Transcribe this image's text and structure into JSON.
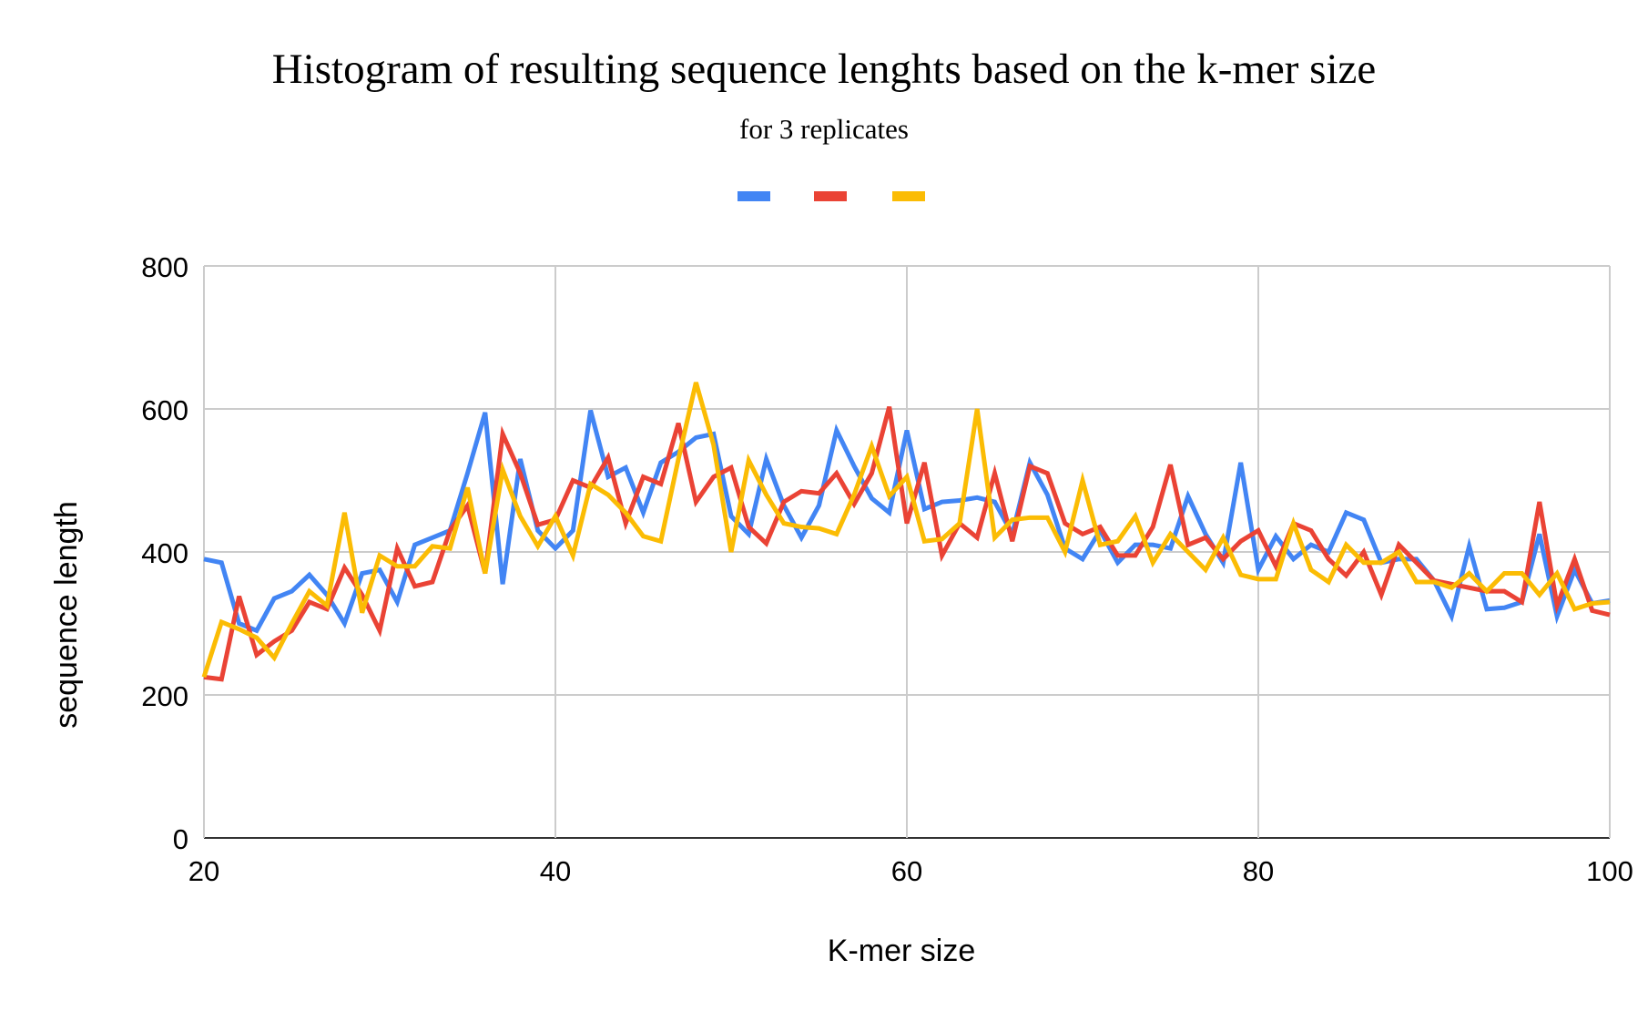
{
  "chart_data": {
    "type": "line",
    "title": "Histogram of resulting sequence lenghts based on the k-mer size",
    "subtitle": "for 3 replicates",
    "xlabel": "K-mer size",
    "ylabel": "sequence length",
    "xlim": [
      20,
      100
    ],
    "ylim": [
      0,
      800
    ],
    "x_ticks": [
      20,
      40,
      60,
      80,
      100
    ],
    "y_ticks": [
      0,
      200,
      400,
      600,
      800
    ],
    "grid": true,
    "legend_position": "top",
    "x": [
      20,
      21,
      22,
      23,
      24,
      25,
      26,
      27,
      28,
      29,
      30,
      31,
      32,
      33,
      34,
      35,
      36,
      37,
      38,
      39,
      40,
      41,
      42,
      43,
      44,
      45,
      46,
      47,
      48,
      49,
      50,
      51,
      52,
      53,
      54,
      55,
      56,
      57,
      58,
      59,
      60,
      61,
      62,
      63,
      64,
      65,
      66,
      67,
      68,
      69,
      70,
      71,
      72,
      73,
      74,
      75,
      76,
      77,
      78,
      79,
      80,
      81,
      82,
      83,
      84,
      85,
      86,
      87,
      88,
      89,
      90,
      91,
      92,
      93,
      94,
      95,
      96,
      97,
      98,
      99,
      100
    ],
    "series": [
      {
        "name": "",
        "color": "#4285f4",
        "values": [
          390,
          385,
          300,
          290,
          335,
          345,
          368,
          340,
          300,
          370,
          375,
          330,
          410,
          420,
          430,
          510,
          595,
          355,
          530,
          430,
          405,
          430,
          598,
          505,
          518,
          455,
          525,
          540,
          560,
          565,
          450,
          425,
          530,
          465,
          420,
          465,
          570,
          520,
          475,
          455,
          570,
          460,
          470,
          472,
          476,
          470,
          425,
          525,
          480,
          405,
          390,
          430,
          385,
          410,
          410,
          405,
          478,
          425,
          385,
          525,
          375,
          422,
          390,
          410,
          400,
          455,
          445,
          385,
          390,
          390,
          360,
          310,
          408,
          320,
          322,
          330,
          425,
          310,
          375,
          328,
          332
        ]
      },
      {
        "name": "",
        "color": "#ea4335",
        "values": [
          225,
          222,
          338,
          256,
          275,
          290,
          330,
          320,
          378,
          340,
          290,
          405,
          352,
          358,
          430,
          465,
          370,
          565,
          510,
          438,
          445,
          500,
          490,
          532,
          440,
          505,
          495,
          580,
          470,
          505,
          518,
          435,
          412,
          470,
          485,
          482,
          510,
          467,
          510,
          603,
          440,
          525,
          395,
          440,
          420,
          510,
          415,
          520,
          510,
          440,
          425,
          435,
          395,
          395,
          435,
          522,
          410,
          420,
          390,
          415,
          430,
          380,
          440,
          430,
          390,
          367,
          400,
          340,
          410,
          385,
          360,
          355,
          350,
          345,
          345,
          330,
          470,
          325,
          390,
          318,
          312
        ]
      },
      {
        "name": "",
        "color": "#fbbc04",
        "values": [
          225,
          302,
          292,
          280,
          252,
          300,
          345,
          325,
          455,
          315,
          395,
          380,
          380,
          408,
          405,
          490,
          370,
          515,
          450,
          408,
          450,
          395,
          495,
          480,
          455,
          422,
          415,
          530,
          637,
          550,
          400,
          528,
          480,
          440,
          435,
          433,
          425,
          480,
          548,
          478,
          505,
          415,
          418,
          440,
          600,
          420,
          445,
          448,
          448,
          400,
          500,
          410,
          415,
          450,
          385,
          425,
          400,
          375,
          420,
          368,
          362,
          362,
          440,
          375,
          358,
          410,
          385,
          385,
          400,
          358,
          358,
          350,
          370,
          345,
          370,
          370,
          340,
          370,
          320,
          328,
          330
        ]
      }
    ]
  }
}
